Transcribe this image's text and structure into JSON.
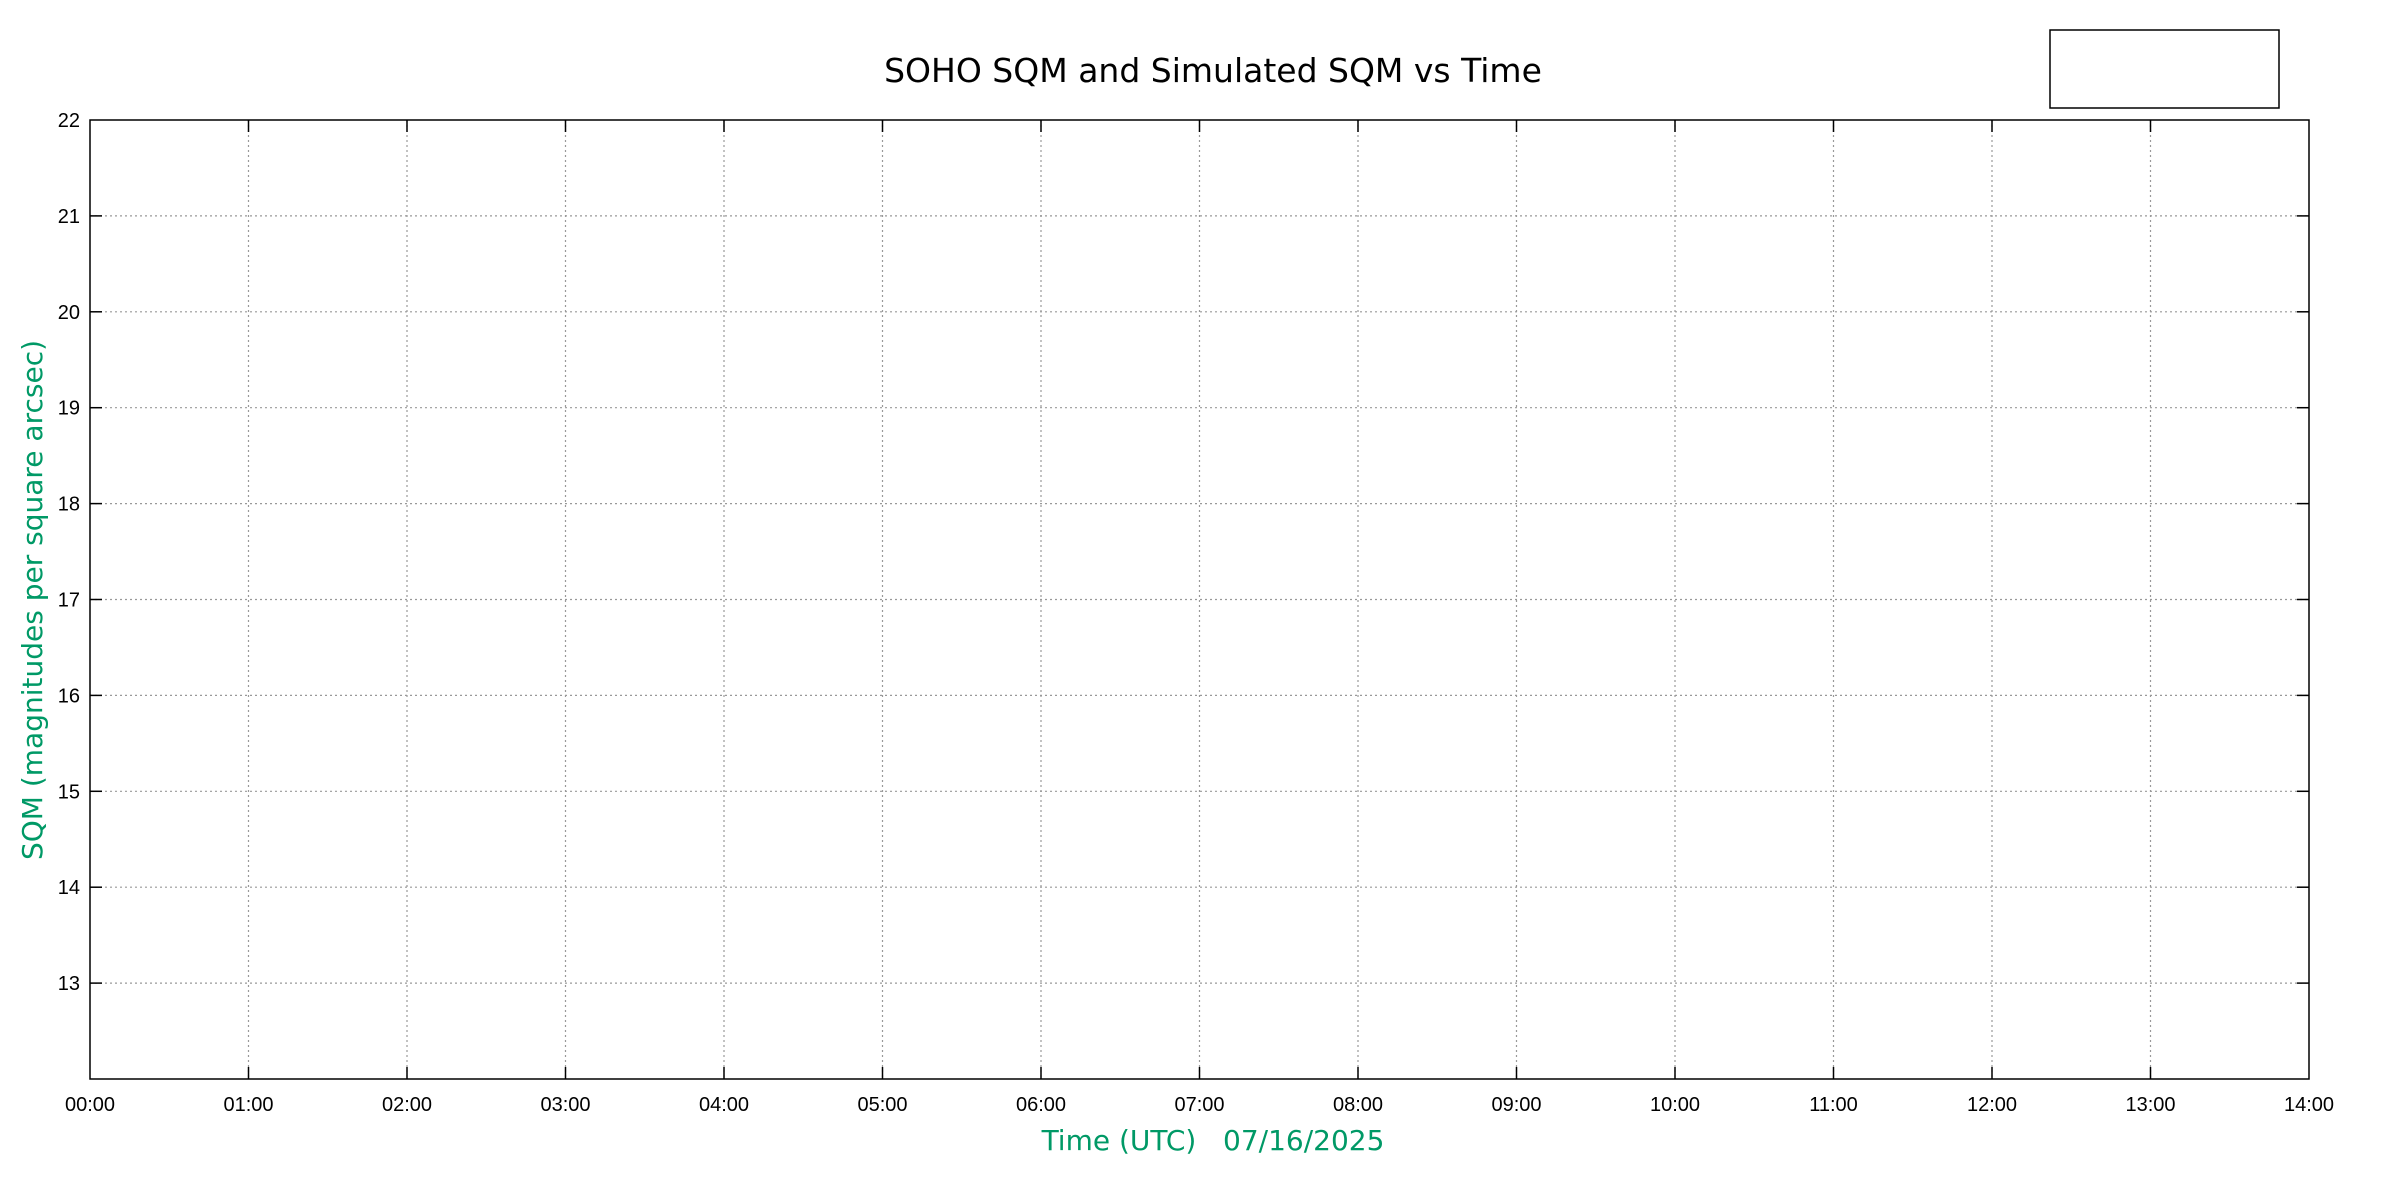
{
  "chart_data": {
    "type": "line",
    "title": "SOHO SQM and Simulated SQM vs Time",
    "xlabel": "Time (UTC)   07/16/2025",
    "ylabel": "SQM (magnitudes per square arcsec)",
    "x_ticks": [
      "00:00",
      "01:00",
      "02:00",
      "03:00",
      "04:00",
      "05:00",
      "06:00",
      "07:00",
      "08:00",
      "09:00",
      "10:00",
      "11:00",
      "12:00",
      "13:00",
      "14:00"
    ],
    "y_ticks": [
      13,
      14,
      15,
      16,
      17,
      18,
      19,
      20,
      21,
      22
    ],
    "xlim_hours": [
      0,
      14
    ],
    "ylim": [
      12,
      22
    ],
    "grid": true,
    "legend": "top-right",
    "series": [],
    "colors": {
      "axis_label": "#009966",
      "grid": "#999999",
      "frame": "#000000"
    }
  }
}
